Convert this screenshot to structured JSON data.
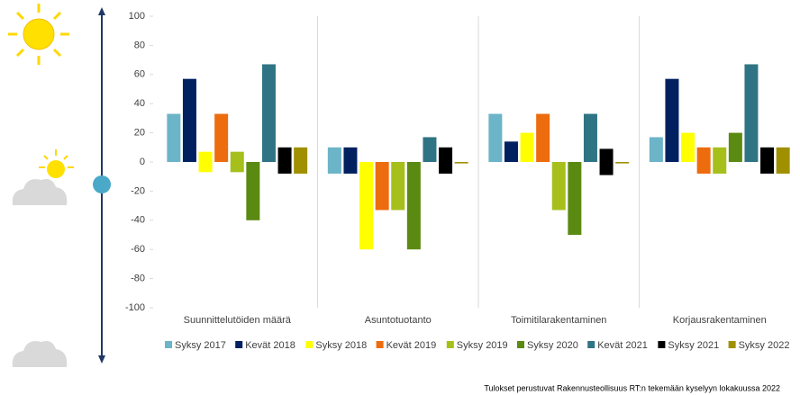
{
  "chart_data": {
    "type": "floating-bar",
    "categories": [
      "Suunnittelutöiden määrä",
      "Asuntotuotanto",
      "Toimitilarakentaminen",
      "Korjausrakentaminen"
    ],
    "ylim": [
      -100,
      100
    ],
    "yticks": [
      -100,
      -80,
      -60,
      -40,
      -20,
      0,
      20,
      40,
      60,
      80,
      100
    ],
    "series": [
      {
        "name": "Syksy 2017",
        "color": "#6cb4c8",
        "values": [
          [
            33,
            0
          ],
          [
            10,
            -8
          ],
          [
            33,
            0
          ],
          [
            17,
            0
          ]
        ]
      },
      {
        "name": "Kevät 2018",
        "color": "#002060",
        "values": [
          [
            57,
            0
          ],
          [
            10,
            -8
          ],
          [
            14,
            0
          ],
          [
            57,
            0
          ]
        ]
      },
      {
        "name": "Syksy 2018",
        "color": "#ffff00",
        "values": [
          [
            7,
            -7
          ],
          [
            0,
            -60
          ],
          [
            20,
            0
          ],
          [
            20,
            0
          ]
        ]
      },
      {
        "name": "Kevät 2019",
        "color": "#ed6c0e",
        "values": [
          [
            33,
            0
          ],
          [
            0,
            -33
          ],
          [
            33,
            0
          ],
          [
            10,
            -8
          ]
        ]
      },
      {
        "name": "Syksy 2019",
        "color": "#a6bf1a",
        "values": [
          [
            7,
            -7
          ],
          [
            0,
            -33
          ],
          [
            0,
            -33
          ],
          [
            10,
            -8
          ]
        ]
      },
      {
        "name": "Syksy 2020",
        "color": "#5b8a12",
        "values": [
          [
            0,
            -40
          ],
          [
            0,
            -60
          ],
          [
            0,
            -50
          ],
          [
            20,
            0
          ]
        ]
      },
      {
        "name": "Kevät 2021",
        "color": "#2f7484",
        "values": [
          [
            67,
            0
          ],
          [
            17,
            0
          ],
          [
            33,
            0
          ],
          [
            67,
            0
          ]
        ]
      },
      {
        "name": "Syksy 2021",
        "color": "#000000",
        "values": [
          [
            10,
            -8
          ],
          [
            10,
            -8
          ],
          [
            9,
            -9
          ],
          [
            10,
            -8
          ]
        ]
      },
      {
        "name": "Syksy 2022",
        "color": "#a09000",
        "values": [
          [
            10,
            -8
          ],
          [
            0,
            -1
          ],
          [
            0,
            -1
          ],
          [
            10,
            -8
          ]
        ]
      }
    ],
    "footnote": "Tulokset perustuvat Rakennusteollisuus RT:n tekemään kyselyyn lokakuussa 2022"
  }
}
